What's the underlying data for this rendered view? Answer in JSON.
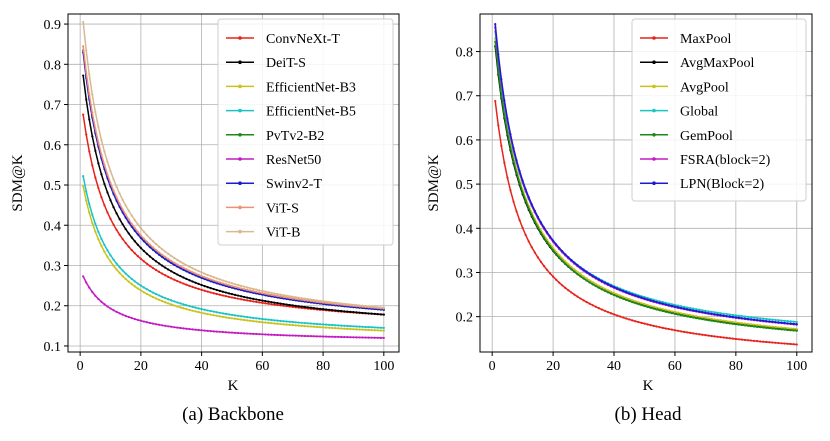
{
  "chart_data": [
    {
      "type": "line",
      "caption": "(a) Backbone",
      "xlabel": "K",
      "ylabel": "SDM@K",
      "xlim": [
        -4,
        105
      ],
      "ylim": [
        0.085,
        0.925
      ],
      "xticks": [
        0,
        20,
        40,
        60,
        80,
        100
      ],
      "yticks": [
        0.1,
        0.2,
        0.3,
        0.4,
        0.5,
        0.6,
        0.7,
        0.8,
        0.9
      ],
      "ytick_labels": [
        "0.1",
        "0.2",
        "0.3",
        "0.4",
        "0.5",
        "0.6",
        "0.7",
        "0.8",
        "0.9"
      ],
      "grid": true,
      "legend_position": "top-right",
      "series": [
        {
          "name": "ConvNeXt-T",
          "color": "#e8221b",
          "start": 0.675,
          "end": 0.178
        },
        {
          "name": "DeiT-S",
          "color": "#000000",
          "start": 0.772,
          "end": 0.178
        },
        {
          "name": "EfficientNet-B3",
          "color": "#c9c21c",
          "start": 0.497,
          "end": 0.138
        },
        {
          "name": "EfficientNet-B5",
          "color": "#18c4c4",
          "start": 0.522,
          "end": 0.145
        },
        {
          "name": "PvTv2-B2",
          "color": "#1a8a1a",
          "start": 0.835,
          "end": 0.19
        },
        {
          "name": "ResNet50",
          "color": "#c21bc2",
          "start": 0.273,
          "end": 0.12
        },
        {
          "name": "Swinv2-T",
          "color": "#1b1bd0",
          "start": 0.83,
          "end": 0.19
        },
        {
          "name": "ViT-S",
          "color": "#ef8f74",
          "start": 0.845,
          "end": 0.193
        },
        {
          "name": "ViT-B",
          "color": "#d7b88f",
          "start": 0.905,
          "end": 0.195
        }
      ]
    },
    {
      "type": "line",
      "caption": "(b) Head",
      "xlabel": "K",
      "ylabel": "SDM@K",
      "xlim": [
        -4,
        105
      ],
      "ylim": [
        0.12,
        0.885
      ],
      "xticks": [
        0,
        20,
        40,
        60,
        80,
        100
      ],
      "yticks": [
        0.2,
        0.3,
        0.4,
        0.5,
        0.6,
        0.7,
        0.8
      ],
      "ytick_labels": [
        "0.2",
        "0.3",
        "0.4",
        "0.5",
        "0.6",
        "0.7",
        "0.8"
      ],
      "grid": true,
      "legend_position": "top-right",
      "series": [
        {
          "name": "MaxPool",
          "color": "#e8221b",
          "start": 0.688,
          "end": 0.137
        },
        {
          "name": "AvgMaxPool",
          "color": "#000000",
          "start": 0.812,
          "end": 0.17
        },
        {
          "name": "AvgPool",
          "color": "#c9c21c",
          "start": 0.83,
          "end": 0.172
        },
        {
          "name": "Global",
          "color": "#18c4c4",
          "start": 0.845,
          "end": 0.188
        },
        {
          "name": "GemPool",
          "color": "#1a8a1a",
          "start": 0.822,
          "end": 0.168
        },
        {
          "name": "FSRA(block=2)",
          "color": "#c21bc2",
          "start": 0.855,
          "end": 0.182
        },
        {
          "name": "LPN(Block=2)",
          "color": "#1b1bd0",
          "start": 0.862,
          "end": 0.183
        }
      ]
    }
  ]
}
